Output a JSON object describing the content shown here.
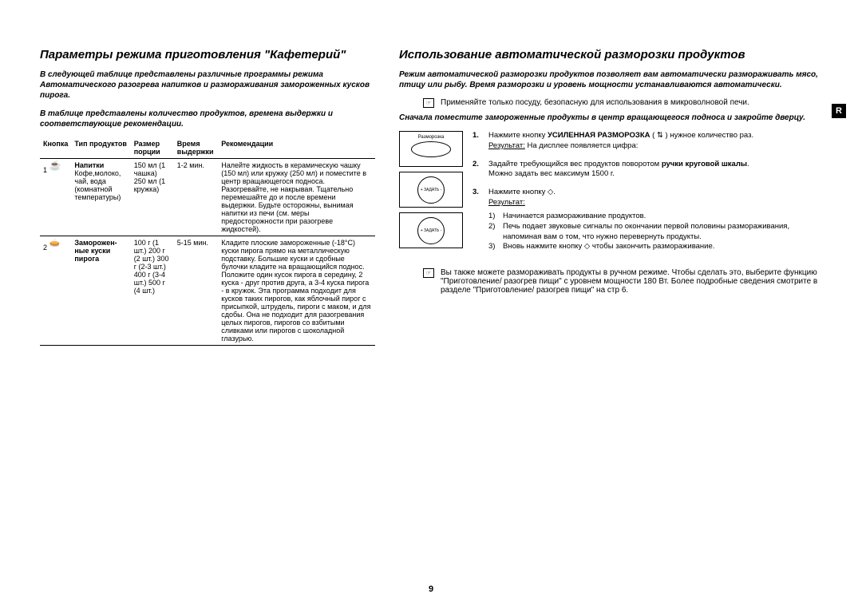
{
  "pageNumber": "9",
  "rTab": "R",
  "left": {
    "title": "Параметры режима приготовления \"Кафетерий\"",
    "intro1": "В следующей таблице представлены различные программы режима Автоматического разогрева напитков и размораживания замороженных кусков пирога.",
    "intro2": "В таблице представлены количество продуктов, времена выдержки и соответствующие рекомендации.",
    "headers": {
      "btn": "Кнопка",
      "type": "Тип продуктов",
      "size": "Размер порции",
      "time": "Время выдержки",
      "rec": "Рекомендации"
    },
    "row1": {
      "btn": "1",
      "type": "Напитки",
      "typeDetail": "Кофе,молоко, чай, вода (комнатной температуры)",
      "size": "150 мл (1 чашка) 250 мл (1 кружка)",
      "time": "1-2 мин.",
      "rec": "Налейте жидкость в керамическую чашку (150 мл) или кружку (250 мл) и поместите в центр вращающегося подноса. Разогревайте, не накрывая. Тщательно перемешайте до и после времени выдержки. Будьте осторожны, вынимая напитки из печи (см. меры предосторожности при разогреве жидкостей)."
    },
    "row2": {
      "btn": "2",
      "type": "Заморожен- ные куски пирога",
      "size": "100 г (1 шт.) 200 г (2 шт.) 300 г (2-3 шт.) 400 г (3-4 шт.) 500 г (4 шт.)",
      "time": "5-15 мин.",
      "rec": "Кладите плоские замороженные (-18°C) куски пирога прямо на металлическую подставку. Большие куски и сдобные булочки кладите на вращающийся поднос. Положите один кусок пирога в середину, 2 куска - друг против друга, а 3-4 куска пирога - в кружок. Эта программа подходит для кусков таких пирогов, как яблочный пирог с присыпкой, штрудель, пироги с маком, и для сдобы. Она не подходит для разогревания целых пирогов, пирогов со взбитыми сливками или пирогов с шоколадной глазурью."
    }
  },
  "right": {
    "title": "Использование автоматической разморозки продуктов",
    "intro1": "Режим автоматической разморозки продуктов позволяет вам автоматически размораживать мясо, птицу или рыбу. Время разморозки и уровень мощности устанавливаются автоматически.",
    "note1": "Применяйте только посуду, безопасную для использования в микроволновой печи.",
    "intro2": "Сначала поместите замороженные продукты в центр вращающегося подноса и закройте дверцу.",
    "icon1Label": "Разморозка",
    "step1a": "Нажмите кнопку ",
    "step1bold": "УСИЛЕННАЯ РАЗМОРОЗКА",
    "step1b": " ( ⇅ ) нужное количество раз.",
    "step1res": "Результат:",
    "step1resText": "На дисплее появляется цифра:",
    "step2a": "Задайте требующийся вес продуктов поворотом ",
    "step2bold": "ручки круговой шкалы",
    "step2b": ".",
    "step2c": "Можно задать вес максимум 1500 г.",
    "step3a": "Нажмите кнопку ",
    "step3b": ".",
    "step3res": "Результат:",
    "step3s1": "Начинается размораживание продуктов.",
    "step3s2": "Печь подает звуковые сигналы по окончании первой половины размораживания, напоминая вам о том, что нужно перевернуть продукты.",
    "step3s3a": "Вновь нажмите кнопку ",
    "step3s3b": " чтобы закончить размораживание.",
    "note2": "Вы также можете размораживать продукты в ручном режиме. Чтобы сделать это, выберите функцию \"Приготовление/ разогрев пищи\" с уровнем мощности 180 Вт. Более подробные сведения смотрите в разделе \"Приготовление/ разогрев пищи\" на стр 6."
  }
}
